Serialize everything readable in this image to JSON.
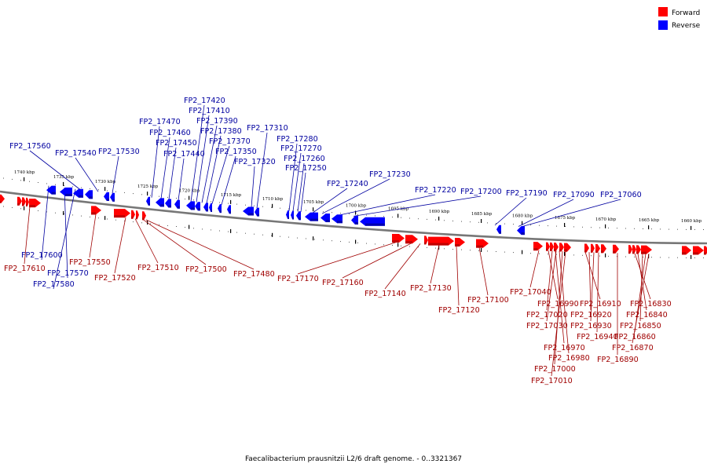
{
  "legend": {
    "forward_label": "Forward",
    "reverse_label": "Reverse",
    "forward_color": "#ff0000",
    "reverse_color": "#0000ff"
  },
  "caption": "Faecalibacterium prausnitzii L2/6 draft genome. - 0..3321367",
  "colors": {
    "backbone": "#777777",
    "label_forward": "#a00000",
    "label_reverse": "#0000a0"
  },
  "scale_ticks": [
    "1740 kbp",
    "1735 kbp",
    "1730 kbp",
    "1725 kbp",
    "1720 kbp",
    "1715 kbp",
    "1710 kbp",
    "1705 kbp",
    "1700 kbp",
    "1695 kbp",
    "1690 kbp",
    "1685 kbp",
    "1680 kbp",
    "1675 kbp",
    "1670 kbp",
    "1665 kbp",
    "1660 kbp"
  ],
  "reverse_genes": [
    "FP2_17560",
    "FP2_17540",
    "FP2_17530",
    "FP2_17470",
    "FP2_17460",
    "FP2_17450",
    "FP2_17440",
    "FP2_17420",
    "FP2_17410",
    "FP2_17390",
    "FP2_17380",
    "FP2_17370",
    "FP2_17350",
    "FP2_17320",
    "FP2_17310",
    "FP2_17280",
    "FP2_17270",
    "FP2_17260",
    "FP2_17250",
    "FP2_17240",
    "FP2_17230",
    "FP2_17220",
    "FP2_17200",
    "FP2_17190",
    "FP2_17090",
    "FP2_17060",
    "FP2_17600",
    "FP2_17570",
    "FP2_17580"
  ],
  "forward_genes": [
    "FP2_17610",
    "FP2_17550",
    "FP2_17520",
    "FP2_17510",
    "FP2_17500",
    "FP2_17480",
    "FP2_17170",
    "FP2_17160",
    "FP2_17140",
    "FP2_17130",
    "FP2_17120",
    "FP2_17100",
    "FP2_17040",
    "FP2_16990",
    "FP2_17020",
    "FP2_17030",
    "FP2_16970",
    "FP2_16980",
    "FP2_17000",
    "FP2_17010",
    "FP2_16910",
    "FP2_16920",
    "FP2_16930",
    "FP2_16940",
    "FP2_16830",
    "FP2_16840",
    "FP2_16850",
    "FP2_16860",
    "FP2_16870",
    "FP2_16890"
  ]
}
